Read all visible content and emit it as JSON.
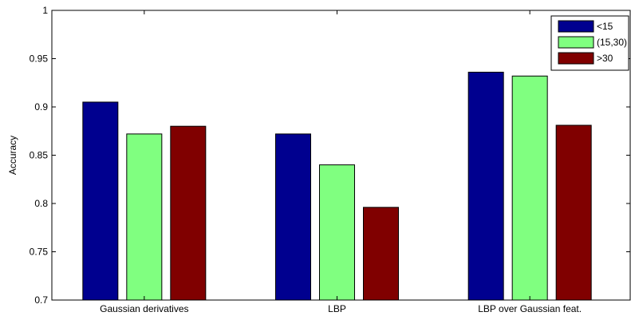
{
  "chart_data": {
    "type": "bar",
    "title": "",
    "xlabel": "",
    "ylabel": "Accuracy",
    "ylim": [
      0.7,
      1.0
    ],
    "yticks": [
      0.7,
      0.75,
      0.8,
      0.85,
      0.9,
      0.95,
      1
    ],
    "ytick_labels": [
      "0.7",
      "0.75",
      "0.8",
      "0.85",
      "0.9",
      "0.95",
      "1"
    ],
    "categories": [
      "Gaussian derivatives",
      "LBP",
      "LBP over Gaussian feat."
    ],
    "series": [
      {
        "name": "<15",
        "color": "#00008f",
        "values": [
          0.905,
          0.872,
          0.936
        ]
      },
      {
        "name": "(15,30)",
        "color": "#80ff80",
        "values": [
          0.872,
          0.84,
          0.932
        ]
      },
      {
        "name": ">30",
        "color": "#800000",
        "values": [
          0.88,
          0.796,
          0.881
        ]
      }
    ],
    "legend_position": "top-right",
    "grid": false
  }
}
